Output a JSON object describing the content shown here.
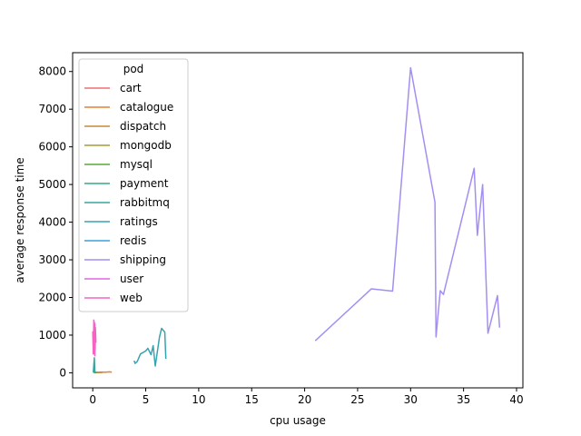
{
  "chart_data": {
    "type": "line",
    "title": "",
    "xlabel": "cpu usage",
    "ylabel": "average response time",
    "xlim": [
      -1.9,
      40.6
    ],
    "ylim": [
      -400,
      8500
    ],
    "xticks": [
      0,
      5,
      10,
      15,
      20,
      25,
      30,
      35,
      40
    ],
    "yticks": [
      0,
      1000,
      2000,
      3000,
      4000,
      5000,
      6000,
      7000,
      8000
    ],
    "grid": false,
    "legend": {
      "title": "pod",
      "placement": "upper-left"
    },
    "series": [
      {
        "name": "cart",
        "color": "#f16e73",
        "points": [
          [
            0.1,
            20
          ],
          [
            0.15,
            10
          ],
          [
            0.2,
            15
          ]
        ]
      },
      {
        "name": "catalogue",
        "color": "#ea7f32",
        "points": [
          [
            0.3,
            10
          ],
          [
            0.8,
            20
          ],
          [
            1.2,
            15
          ],
          [
            1.6,
            25
          ],
          [
            1.8,
            15
          ]
        ]
      },
      {
        "name": "dispatch",
        "color": "#c28c35",
        "points": [
          [
            0.4,
            5
          ],
          [
            0.6,
            8
          ],
          [
            0.9,
            6
          ]
        ]
      },
      {
        "name": "mongodb",
        "color": "#a69b35",
        "points": [
          [
            0.2,
            5
          ],
          [
            0.35,
            10
          ],
          [
            0.5,
            8
          ]
        ]
      },
      {
        "name": "mysql",
        "color": "#58a934",
        "points": [
          [
            0.15,
            5
          ],
          [
            0.25,
            8
          ],
          [
            0.35,
            6
          ]
        ]
      },
      {
        "name": "payment",
        "color": "#35aa89",
        "points": [
          [
            0.1,
            10
          ],
          [
            0.2,
            20
          ],
          [
            0.3,
            15
          ]
        ]
      },
      {
        "name": "rabbitmq",
        "color": "#36a69e",
        "points": [
          [
            0.05,
            5
          ],
          [
            0.15,
            400
          ],
          [
            0.2,
            10
          ],
          [
            0.25,
            15
          ]
        ]
      },
      {
        "name": "ratings",
        "color": "#37a3b0",
        "points": [
          [
            3.9,
            320
          ],
          [
            4.0,
            250
          ],
          [
            4.2,
            300
          ],
          [
            4.5,
            500
          ],
          [
            5.0,
            580
          ],
          [
            5.2,
            650
          ],
          [
            5.5,
            480
          ],
          [
            5.7,
            720
          ],
          [
            5.9,
            180
          ],
          [
            6.3,
            950
          ],
          [
            6.5,
            1180
          ],
          [
            6.8,
            1080
          ],
          [
            6.9,
            370
          ]
        ]
      },
      {
        "name": "redis",
        "color": "#3aa0dc",
        "points": [
          [
            0.05,
            10
          ],
          [
            0.1,
            15
          ],
          [
            0.15,
            12
          ]
        ]
      },
      {
        "name": "shipping",
        "color": "#a48ef2",
        "points": [
          [
            21.0,
            850
          ],
          [
            26.3,
            2230
          ],
          [
            28.3,
            2170
          ],
          [
            30.0,
            8100
          ],
          [
            32.3,
            4530
          ],
          [
            32.4,
            950
          ],
          [
            32.8,
            2180
          ],
          [
            33.1,
            2080
          ],
          [
            36.0,
            5430
          ],
          [
            36.3,
            3650
          ],
          [
            36.8,
            5000
          ],
          [
            37.3,
            1050
          ],
          [
            38.2,
            2050
          ],
          [
            38.4,
            1200
          ]
        ]
      },
      {
        "name": "user",
        "color": "#e467e9",
        "points": [
          [
            0.05,
            900
          ],
          [
            0.1,
            1200
          ],
          [
            0.12,
            500
          ],
          [
            0.15,
            1050
          ],
          [
            0.18,
            700
          ],
          [
            0.2,
            1300
          ],
          [
            0.22,
            600
          ],
          [
            0.25,
            950
          ]
        ]
      },
      {
        "name": "web",
        "color": "#f564c3",
        "points": [
          [
            0.0,
            1100
          ],
          [
            0.05,
            500
          ],
          [
            0.1,
            1400
          ],
          [
            0.12,
            600
          ],
          [
            0.15,
            1350
          ],
          [
            0.2,
            450
          ],
          [
            0.25,
            1200
          ],
          [
            0.3,
            800
          ]
        ]
      }
    ]
  }
}
